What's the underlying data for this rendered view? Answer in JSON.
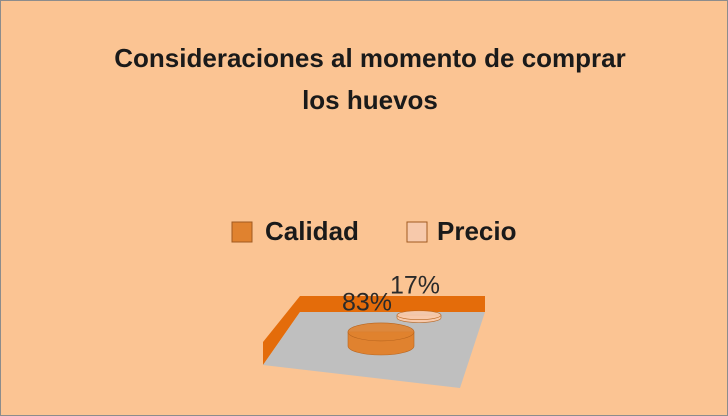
{
  "chart_data": {
    "type": "bar",
    "title": "Consideraciones al momento de comprar los huevos",
    "series": [
      {
        "name": "Calidad",
        "color": "#e0822f",
        "values": [
          83
        ],
        "value_labels": [
          "83%"
        ]
      },
      {
        "name": "Precio",
        "color": "#f7c9ab",
        "values": [
          17
        ],
        "value_labels": [
          "17%"
        ]
      }
    ],
    "legend": "top"
  }
}
